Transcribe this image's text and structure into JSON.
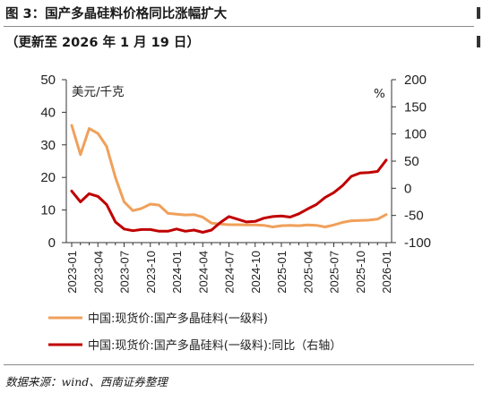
{
  "header": {
    "title": "图 3：国产多晶硅料价格同比涨幅扩大",
    "subtitle": "（更新至 2026 年 1 月 19 日）"
  },
  "footer": {
    "source": "数据来源：wind、西南证券整理"
  },
  "colors": {
    "price_line": "#f0a05a",
    "yoy_line": "#c00000",
    "axis": "#333333"
  },
  "chart_data": {
    "type": "line",
    "left_axis": {
      "label": "美元/千克",
      "ylim": [
        0,
        50
      ],
      "ticks": [
        "0",
        "10",
        "20",
        "30",
        "40",
        "50"
      ]
    },
    "right_axis": {
      "label": "%",
      "ylim": [
        -100,
        200
      ],
      "ticks": [
        "-100",
        "-50",
        "0",
        "50",
        "100",
        "150",
        "200"
      ]
    },
    "x_ticks": [
      "2023-01",
      "2023-04",
      "2023-07",
      "2023-10",
      "2024-01",
      "2024-04",
      "2024-07",
      "2024-10",
      "2025-01",
      "2025-04",
      "2025-07",
      "2025-10",
      "2026-01"
    ],
    "x": [
      "2023-01",
      "2023-02",
      "2023-03",
      "2023-04",
      "2023-05",
      "2023-06",
      "2023-07",
      "2023-08",
      "2023-09",
      "2023-10",
      "2023-11",
      "2023-12",
      "2024-01",
      "2024-02",
      "2024-03",
      "2024-04",
      "2024-05",
      "2024-06",
      "2024-07",
      "2024-08",
      "2024-09",
      "2024-10",
      "2024-11",
      "2024-12",
      "2025-01",
      "2025-02",
      "2025-03",
      "2025-04",
      "2025-05",
      "2025-06",
      "2025-07",
      "2025-08",
      "2025-09",
      "2025-10",
      "2025-11",
      "2025-12",
      "2026-01"
    ],
    "grid": false,
    "legend_position": "bottom",
    "series": [
      {
        "name": "中国:现货价:国产多晶硅料(一级料)",
        "axis": "left",
        "values": [
          36,
          27,
          35,
          33.5,
          29.5,
          20,
          12.5,
          9.8,
          10.5,
          11.8,
          11.5,
          9,
          8.7,
          8.5,
          8.6,
          7.8,
          6,
          5.7,
          5.5,
          5.5,
          5.4,
          5.4,
          5.3,
          4.8,
          5.2,
          5.3,
          5.2,
          5.4,
          5.3,
          4.8,
          5.4,
          6.2,
          6.7,
          6.8,
          6.9,
          7.2,
          8.6
        ]
      },
      {
        "name": "中国:现货价:国产多晶硅料(一级料):同比（右轴）",
        "axis": "right",
        "values": [
          -5,
          -25,
          -10,
          -15,
          -30,
          -62,
          -75,
          -78,
          -76,
          -76,
          -79,
          -79,
          -75,
          -79,
          -77,
          -81,
          -77,
          -63,
          -52,
          -57,
          -62,
          -61,
          -55,
          -52,
          -51,
          -53,
          -47,
          -38,
          -30,
          -17,
          -8,
          5,
          22,
          28,
          29,
          31,
          52
        ]
      }
    ]
  }
}
